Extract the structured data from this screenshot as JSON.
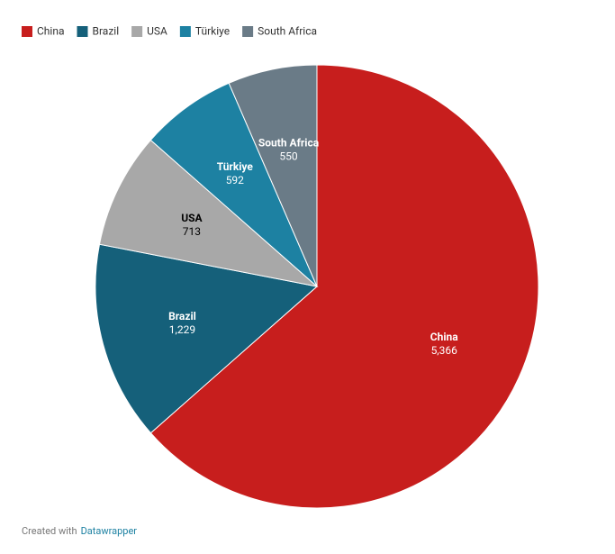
{
  "chart_data": {
    "type": "pie",
    "categories": [
      "China",
      "Brazil",
      "USA",
      "Türkiye",
      "South Africa"
    ],
    "values": [
      5366,
      1229,
      713,
      592,
      550
    ],
    "value_labels": [
      "5,366",
      "1,229",
      "713",
      "592",
      "550"
    ],
    "colors": [
      "#c71e1d",
      "#15607a",
      "#a8a8a8",
      "#1d81a2",
      "#6a7b87"
    ],
    "legend": "top-left",
    "footer": {
      "prefix": "Created with",
      "link": "Datawrapper"
    }
  }
}
